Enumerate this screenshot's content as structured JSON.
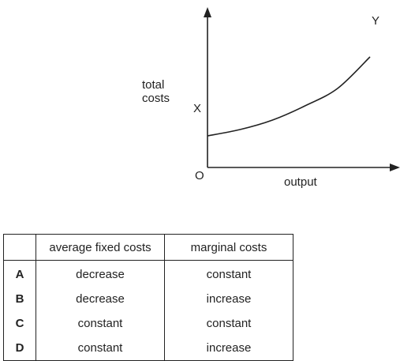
{
  "chart_data": {
    "type": "line",
    "xlabel": "output",
    "ylabel": "total costs",
    "origin_label": "O",
    "series": [
      {
        "start_label": "X",
        "end_label": "Y",
        "x": [
          0,
          2,
          4,
          6,
          8,
          10
        ],
        "y": [
          0.4,
          0.48,
          0.6,
          0.78,
          1.0,
          1.4
        ]
      }
    ],
    "xlim": [
      0,
      10
    ],
    "ylim": [
      0,
      2
    ],
    "grid": false
  },
  "table": {
    "headers": [
      "",
      "average fixed costs",
      "marginal costs"
    ],
    "rows": [
      {
        "option": "A",
        "afc": "decrease",
        "mc": "constant"
      },
      {
        "option": "B",
        "afc": "decrease",
        "mc": "increase"
      },
      {
        "option": "C",
        "afc": "constant",
        "mc": "constant"
      },
      {
        "option": "D",
        "afc": "constant",
        "mc": "increase"
      }
    ]
  }
}
